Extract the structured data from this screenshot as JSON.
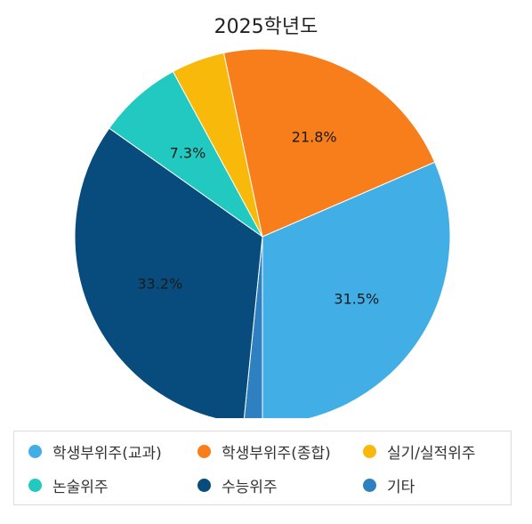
{
  "chart_data": {
    "type": "pie",
    "title": "2025학년도",
    "slices": [
      {
        "label": "학생부위주(교과)",
        "value": 31.5,
        "display": "31.5%",
        "color": "#41aee6"
      },
      {
        "label": "기타",
        "value": 1.6,
        "display": "",
        "color": "#2f80c1"
      },
      {
        "label": "수능위주",
        "value": 33.2,
        "display": "33.2%",
        "color": "#084c7e"
      },
      {
        "label": "논술위주",
        "value": 7.3,
        "display": "7.3%",
        "color": "#22c9c0"
      },
      {
        "label": "실기/실적위주",
        "value": 4.6,
        "display": "",
        "color": "#f9b90a"
      },
      {
        "label": "학생부위주(종합)",
        "value": 21.8,
        "display": "21.8%",
        "color": "#f77e1a"
      }
    ],
    "legend": [
      {
        "label": "학생부위주(교과)",
        "color": "#41aee6"
      },
      {
        "label": "학생부위주(종합)",
        "color": "#f77e1a"
      },
      {
        "label": "실기/실적위주",
        "color": "#f9b90a"
      },
      {
        "label": "논술위주",
        "color": "#22c9c0"
      },
      {
        "label": "수능위주",
        "color": "#084c7e"
      },
      {
        "label": "기타",
        "color": "#2f80c1"
      }
    ],
    "legend_position": "bottom"
  }
}
